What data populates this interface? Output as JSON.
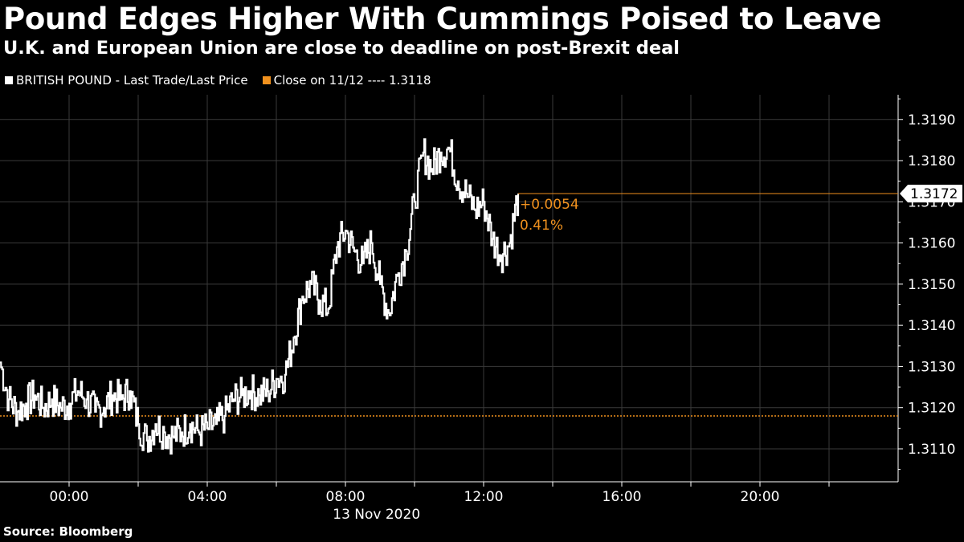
{
  "title": "Pound Edges Higher With Cummings Poised to Leave",
  "subtitle": "U.K. and European Union are close to deadline on post-Brexit deal",
  "source": "Source: Bloomberg",
  "colors": {
    "price": "#ffffff",
    "close": "#f0911e",
    "background": "#000000",
    "grid": "#3a3a3a"
  },
  "legend": [
    {
      "label": "BRITISH POUND - Last Trade/Last Price",
      "color": "#ffffff"
    },
    {
      "label": "Close on 11/12 ---- 1.3118",
      "color": "#f0911e"
    }
  ],
  "chart_data": {
    "type": "line",
    "x_ticks": [
      "00:00",
      "04:00",
      "08:00",
      "12:00",
      "16:00",
      "20:00"
    ],
    "x_date_label": "13 Nov 2020",
    "y_ticks": [
      "1.3110",
      "1.3120",
      "1.3130",
      "1.3140",
      "1.3150",
      "1.3160",
      "1.3170",
      "1.3180",
      "1.3190"
    ],
    "ylim": [
      1.3102,
      1.3196
    ],
    "xlim_hours": [
      -2,
      24
    ],
    "grid": true,
    "y_axis_side": "right",
    "close_line": {
      "label": "Close on 11/12",
      "value": 1.3118
    },
    "last_value_label": "1.3172",
    "last_value": 1.3172,
    "change_label": "+0.0054",
    "change_pct_label": "0.41%",
    "series": [
      {
        "name": "BRITISH POUND - Last Trade/Last Price",
        "x_hours": [
          -2.0,
          -1.75,
          -1.5,
          -1.25,
          -1.0,
          -0.75,
          -0.5,
          -0.25,
          0.0,
          0.25,
          0.5,
          0.75,
          1.0,
          1.25,
          1.5,
          1.75,
          2.0,
          2.25,
          2.5,
          2.75,
          3.0,
          3.25,
          3.5,
          3.75,
          4.0,
          4.25,
          4.5,
          4.75,
          5.0,
          5.25,
          5.5,
          5.75,
          6.0,
          6.25,
          6.5,
          6.75,
          7.0,
          7.25,
          7.5,
          7.75,
          8.0,
          8.25,
          8.5,
          8.75,
          9.0,
          9.25,
          9.5,
          9.75,
          10.0,
          10.25,
          10.5,
          10.75,
          11.0,
          11.25,
          11.5,
          11.75,
          12.0,
          12.25,
          12.5,
          12.75,
          13.0
        ],
        "values": [
          1.3131,
          1.3122,
          1.3119,
          1.3121,
          1.3123,
          1.312,
          1.3122,
          1.312,
          1.3121,
          1.3124,
          1.3122,
          1.3119,
          1.312,
          1.3123,
          1.3122,
          1.3124,
          1.3116,
          1.3112,
          1.3116,
          1.3114,
          1.3113,
          1.3114,
          1.3116,
          1.3114,
          1.3115,
          1.3116,
          1.3118,
          1.3122,
          1.3123,
          1.3124,
          1.3123,
          1.3124,
          1.3127,
          1.3128,
          1.3137,
          1.3147,
          1.315,
          1.3146,
          1.3144,
          1.3159,
          1.3163,
          1.3158,
          1.3155,
          1.316,
          1.315,
          1.3143,
          1.3152,
          1.3158,
          1.317,
          1.3182,
          1.3178,
          1.3182,
          1.3183,
          1.3175,
          1.3172,
          1.3168,
          1.317,
          1.3161,
          1.3157,
          1.316,
          1.3172
        ]
      }
    ]
  }
}
